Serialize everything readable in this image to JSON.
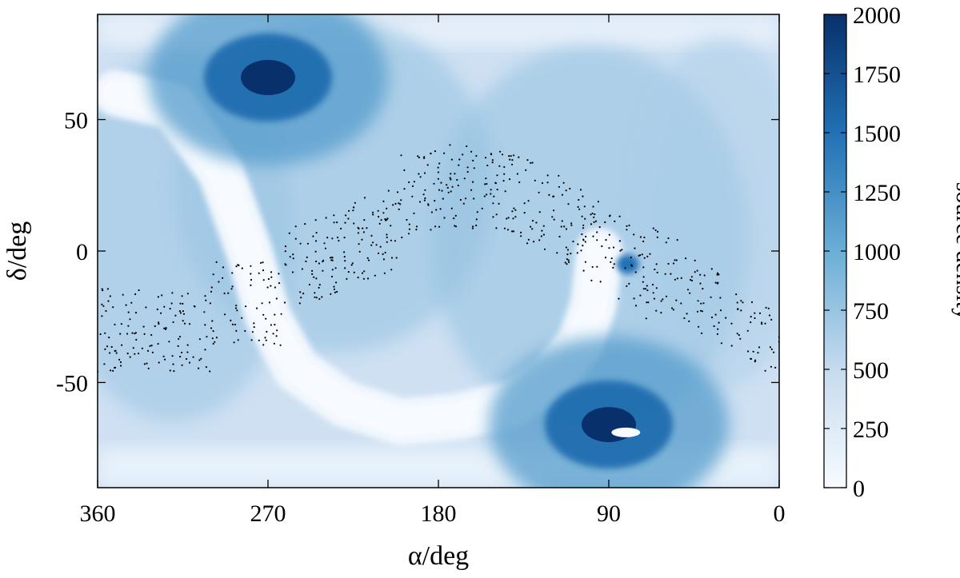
{
  "chart_data": {
    "type": "heatmap",
    "title": "",
    "xlabel": "α/deg",
    "ylabel": "δ/deg",
    "xlim": [
      360,
      0
    ],
    "ylim": [
      -90,
      90
    ],
    "x_ticks": [
      360,
      270,
      180,
      90,
      0
    ],
    "y_ticks": [
      50,
      0,
      -50
    ],
    "colorbar": {
      "label": "source density",
      "range": [
        0,
        2000
      ],
      "ticks": [
        0,
        250,
        500,
        750,
        1000,
        1250,
        1500,
        1750,
        2000
      ],
      "colormap": [
        "#f7fbff",
        "#c6dbef",
        "#6baed6",
        "#2171b5",
        "#08306b"
      ]
    },
    "features": [
      {
        "name": "north ecliptic pole overdensity",
        "alpha": 270,
        "delta": 66,
        "density": 2000
      },
      {
        "name": "south ecliptic pole overdensity",
        "alpha": 90,
        "delta": -66,
        "density": 2000
      },
      {
        "name": "galactic plane underdensity",
        "density": 0
      },
      {
        "name": "overplotted sources",
        "color": "#000000",
        "band": "black points along ecliptic"
      }
    ]
  }
}
